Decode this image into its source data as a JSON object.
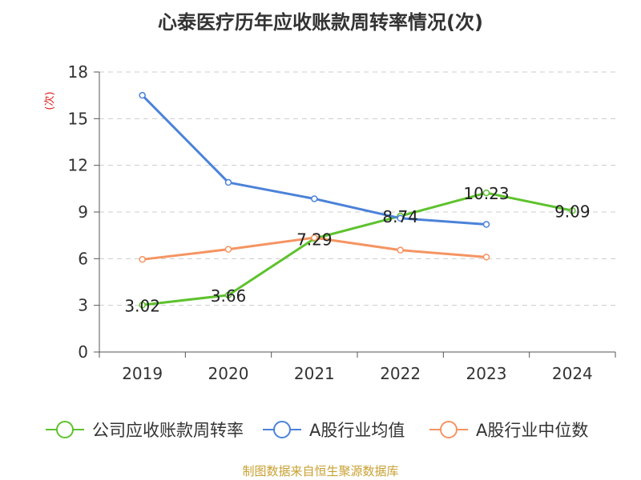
{
  "chart_data": {
    "type": "line",
    "title": "心泰医疗历年应收账款周转率情况(次)",
    "ylabel": "(次)",
    "xlabel": "",
    "categories": [
      "2019",
      "2020",
      "2021",
      "2022",
      "2023",
      "2024"
    ],
    "ylim": [
      0,
      18
    ],
    "yticks": [
      0,
      3,
      6,
      9,
      12,
      15,
      18
    ],
    "grid": true,
    "legend_position": "bottom",
    "series": [
      {
        "name": "公司应收账款周转率",
        "color": "#5ec22e",
        "values": [
          3.02,
          3.66,
          7.29,
          8.74,
          10.23,
          9.09
        ],
        "labels": [
          "3.02",
          "3.66",
          "7.29",
          "8.74",
          "10.23",
          "9.09"
        ]
      },
      {
        "name": "A股行业均值",
        "color": "#4b82d9",
        "values": [
          16.5,
          10.9,
          9.85,
          8.6,
          8.2,
          null
        ]
      },
      {
        "name": "A股行业中位数",
        "color": "#f59462",
        "values": [
          5.95,
          6.6,
          7.35,
          6.55,
          6.1,
          null
        ]
      }
    ]
  },
  "source_note": "制图数据来自恒生聚源数据库"
}
